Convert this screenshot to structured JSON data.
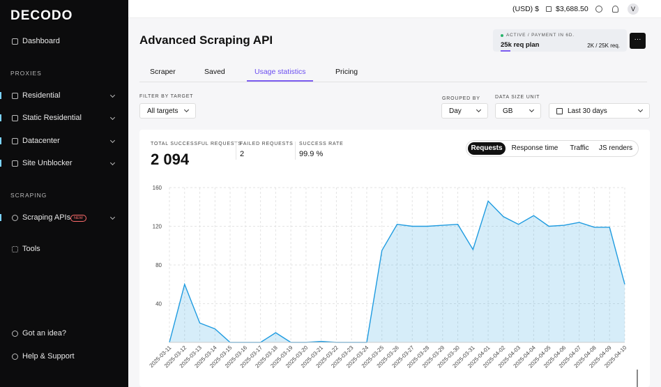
{
  "sidebar": {
    "logo": "DECODO",
    "items": [
      "Dashboard"
    ],
    "sections": [
      {
        "title": "PROXIES",
        "items": [
          "Residential",
          "Static Residential",
          "Datacenter",
          "Site Unblocker"
        ]
      },
      {
        "title": "SCRAPING",
        "items": [
          "Scraping APIs",
          "Tools"
        ],
        "badge": "NEW"
      }
    ],
    "footer": [
      "Got an idea?",
      "Help & Support"
    ]
  },
  "topbar": {
    "currency": "(USD) $",
    "balance": "$3,688.50",
    "avatar": "V"
  },
  "header": {
    "title": "Advanced Scraping API",
    "plan_status": "ACTIVE / PAYMENT IN 6D.",
    "plan": "25k req plan",
    "usage": "2K / 25K req."
  },
  "tabs": {
    "items": [
      "Scraper",
      "Saved",
      "Usage statistics",
      "Pricing"
    ],
    "active": 2
  },
  "filters": {
    "target": {
      "label": "FILTER BY TARGET",
      "value": "All targets"
    },
    "grouped": {
      "label": "GROUPED BY",
      "value": "Day"
    },
    "unit": {
      "label": "DATA SIZE UNIT",
      "value": "GB"
    },
    "range": {
      "value": "Last 30 days"
    }
  },
  "stats": [
    {
      "label": "TOTAL SUCCESSFUL REQUESTS",
      "value": "2 094"
    },
    {
      "label": "FAILED REQUESTS",
      "value": "2"
    },
    {
      "label": "SUCCESS RATE",
      "value": "99.9 %"
    }
  ],
  "toggles": {
    "items": [
      "Requests",
      "Response time",
      "Traffic",
      "JS renders"
    ],
    "active": 0
  },
  "chart_data": {
    "type": "line",
    "x": [
      "2025-03-11",
      "2025-03-12",
      "2025-03-13",
      "2025-03-14",
      "2025-03-15",
      "2025-03-16",
      "2025-03-17",
      "2025-03-18",
      "2025-03-19",
      "2025-03-20",
      "2025-03-21",
      "2025-03-22",
      "2025-03-23",
      "2025-03-24",
      "2025-03-25",
      "2025-03-26",
      "2025-03-27",
      "2025-03-28",
      "2025-03-29",
      "2025-03-30",
      "2025-03-31",
      "2025-04-01",
      "2025-04-02",
      "2025-04-03",
      "2025-04-04",
      "2025-04-05",
      "2025-04-06",
      "2025-04-07",
      "2025-04-08",
      "2025-04-09",
      "2025-04-10"
    ],
    "series": [
      {
        "color": "#1e9be0",
        "values": [
          0,
          60,
          20,
          14,
          0,
          0,
          0,
          10,
          0,
          0,
          1,
          0,
          0,
          0,
          95,
          122,
          120,
          120,
          121,
          122,
          96,
          146,
          130,
          122,
          131,
          120,
          121,
          124,
          119,
          119,
          60
        ]
      }
    ],
    "ylim": [
      0,
      160
    ],
    "yticks": [
      40,
      80,
      120,
      160
    ],
    "grid": true
  }
}
